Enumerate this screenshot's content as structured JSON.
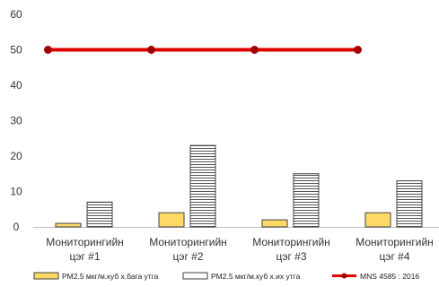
{
  "chart_data": {
    "type": "bar",
    "categories": [
      [
        "Мониторингийн",
        "цэг #1"
      ],
      [
        "Мониторингийн",
        "цэг #2"
      ],
      [
        "Мониторингийн",
        "цэг #3"
      ],
      [
        "Мониторингийн",
        "цэг #4"
      ]
    ],
    "series": [
      {
        "name": "PM2.5 мкг/м.куб  х.бага утга",
        "kind": "bar",
        "fill": "#FFD966",
        "stroke": "#404040",
        "pattern": "solid",
        "values": [
          1,
          4,
          2,
          4
        ]
      },
      {
        "name": "PM2.5 мкг/м.куб  х.их утга",
        "kind": "bar",
        "fill": "#FFFFFF",
        "stroke": "#404040",
        "pattern": "horizontal-lines",
        "values": [
          7,
          23,
          15,
          13
        ]
      },
      {
        "name": "MNS 4585 : 2016",
        "kind": "line",
        "color": "#E00000",
        "marker_color": "#A00000",
        "values": [
          50,
          50,
          50,
          50
        ]
      }
    ],
    "ylim": [
      0,
      60
    ],
    "yticks": [
      0,
      10,
      20,
      30,
      40,
      50,
      60
    ],
    "grid": false,
    "legend": "bottom",
    "title": "",
    "xlabel": "",
    "ylabel": ""
  }
}
